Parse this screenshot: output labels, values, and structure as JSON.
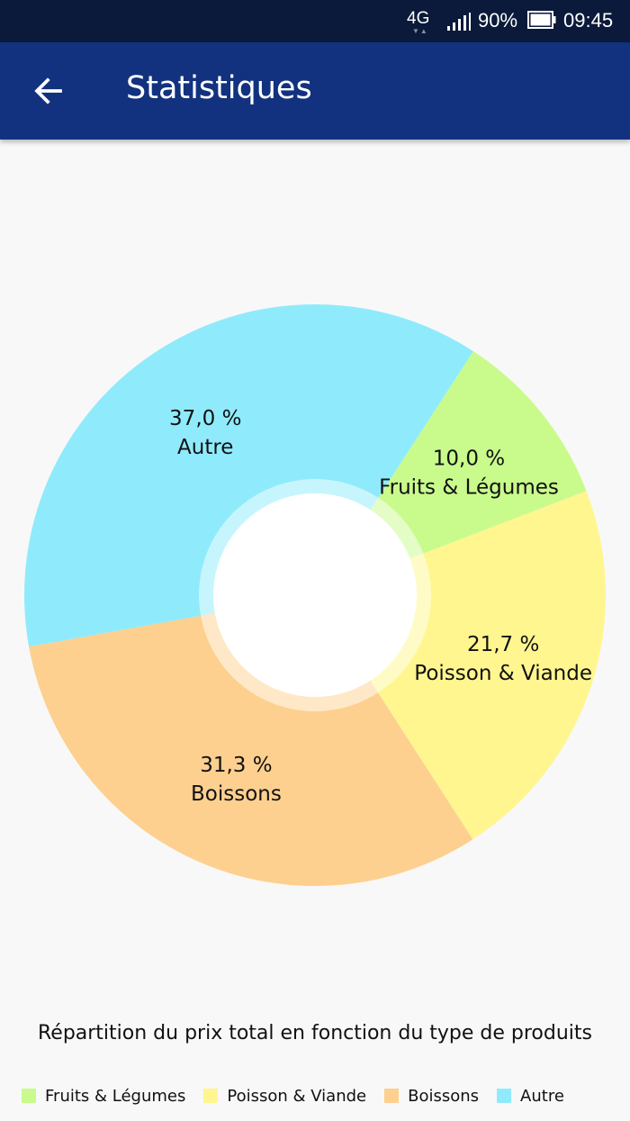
{
  "status_bar": {
    "network": "4G",
    "battery": "90%",
    "time": "09:45"
  },
  "app_bar": {
    "title": "Statistiques",
    "back_icon": "arrow-left-icon"
  },
  "colors": {
    "app_bar": "#12327f",
    "status_bar": "#0b1a3a",
    "background": "#f8f8f8"
  },
  "chart_data": {
    "type": "pie",
    "subtype": "donut",
    "title": "Répartition du prix total en fonction du type de produits",
    "slices": [
      {
        "label": "Fruits & Légumes",
        "value": 10.0,
        "value_label": "10,0 %",
        "color": "#c9fb8c"
      },
      {
        "label": "Poisson & Viande",
        "value": 21.7,
        "value_label": "21,7 %",
        "color": "#fff68f"
      },
      {
        "label": "Boissons",
        "value": 31.3,
        "value_label": "31,3 %",
        "color": "#fdd08f"
      },
      {
        "label": "Autre",
        "value": 37.0,
        "value_label": "37,0 %",
        "color": "#8febfc"
      }
    ],
    "legend_position": "bottom-left"
  }
}
